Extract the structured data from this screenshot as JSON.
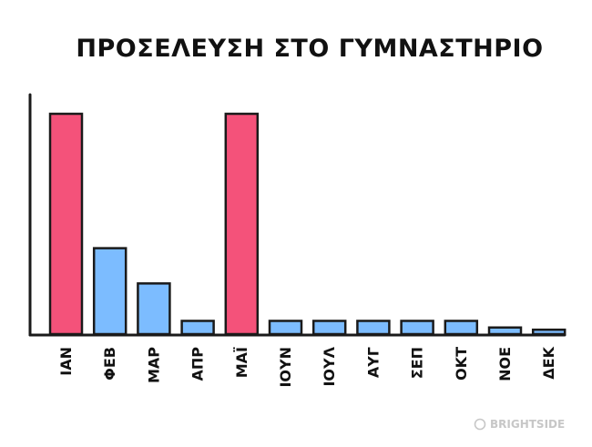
{
  "chart_data": {
    "type": "bar",
    "title": "ΠΡΟΣΕΛΕΥΣΗ ΣΤΟ ΓΥΜΝΑΣΤΗΡΙΟ",
    "categories": [
      "ΙΑΝ",
      "ΦΕΒ",
      "ΜΑΡ",
      "ΑΠΡ",
      "ΜΑΪ",
      "ΙΟΥΝ",
      "ΙΟΥΛ",
      "ΑΥΓ",
      "ΣΕΠ",
      "ΟΚΤ",
      "ΝΟΕ",
      "ΔΕΚ"
    ],
    "values": [
      100,
      39,
      23,
      6,
      100,
      6,
      6,
      6,
      6,
      6,
      3,
      2
    ],
    "highlight": [
      true,
      false,
      false,
      false,
      true,
      false,
      false,
      false,
      false,
      false,
      false,
      false
    ],
    "ylim": [
      0,
      110
    ],
    "xlabel": "",
    "ylabel": "",
    "grid": false,
    "colors": {
      "highlight": "#f4527a",
      "normal": "#7cbcff",
      "outline": "#1a1a1a"
    }
  },
  "watermark": {
    "text": "BRIGHTSIDE"
  }
}
